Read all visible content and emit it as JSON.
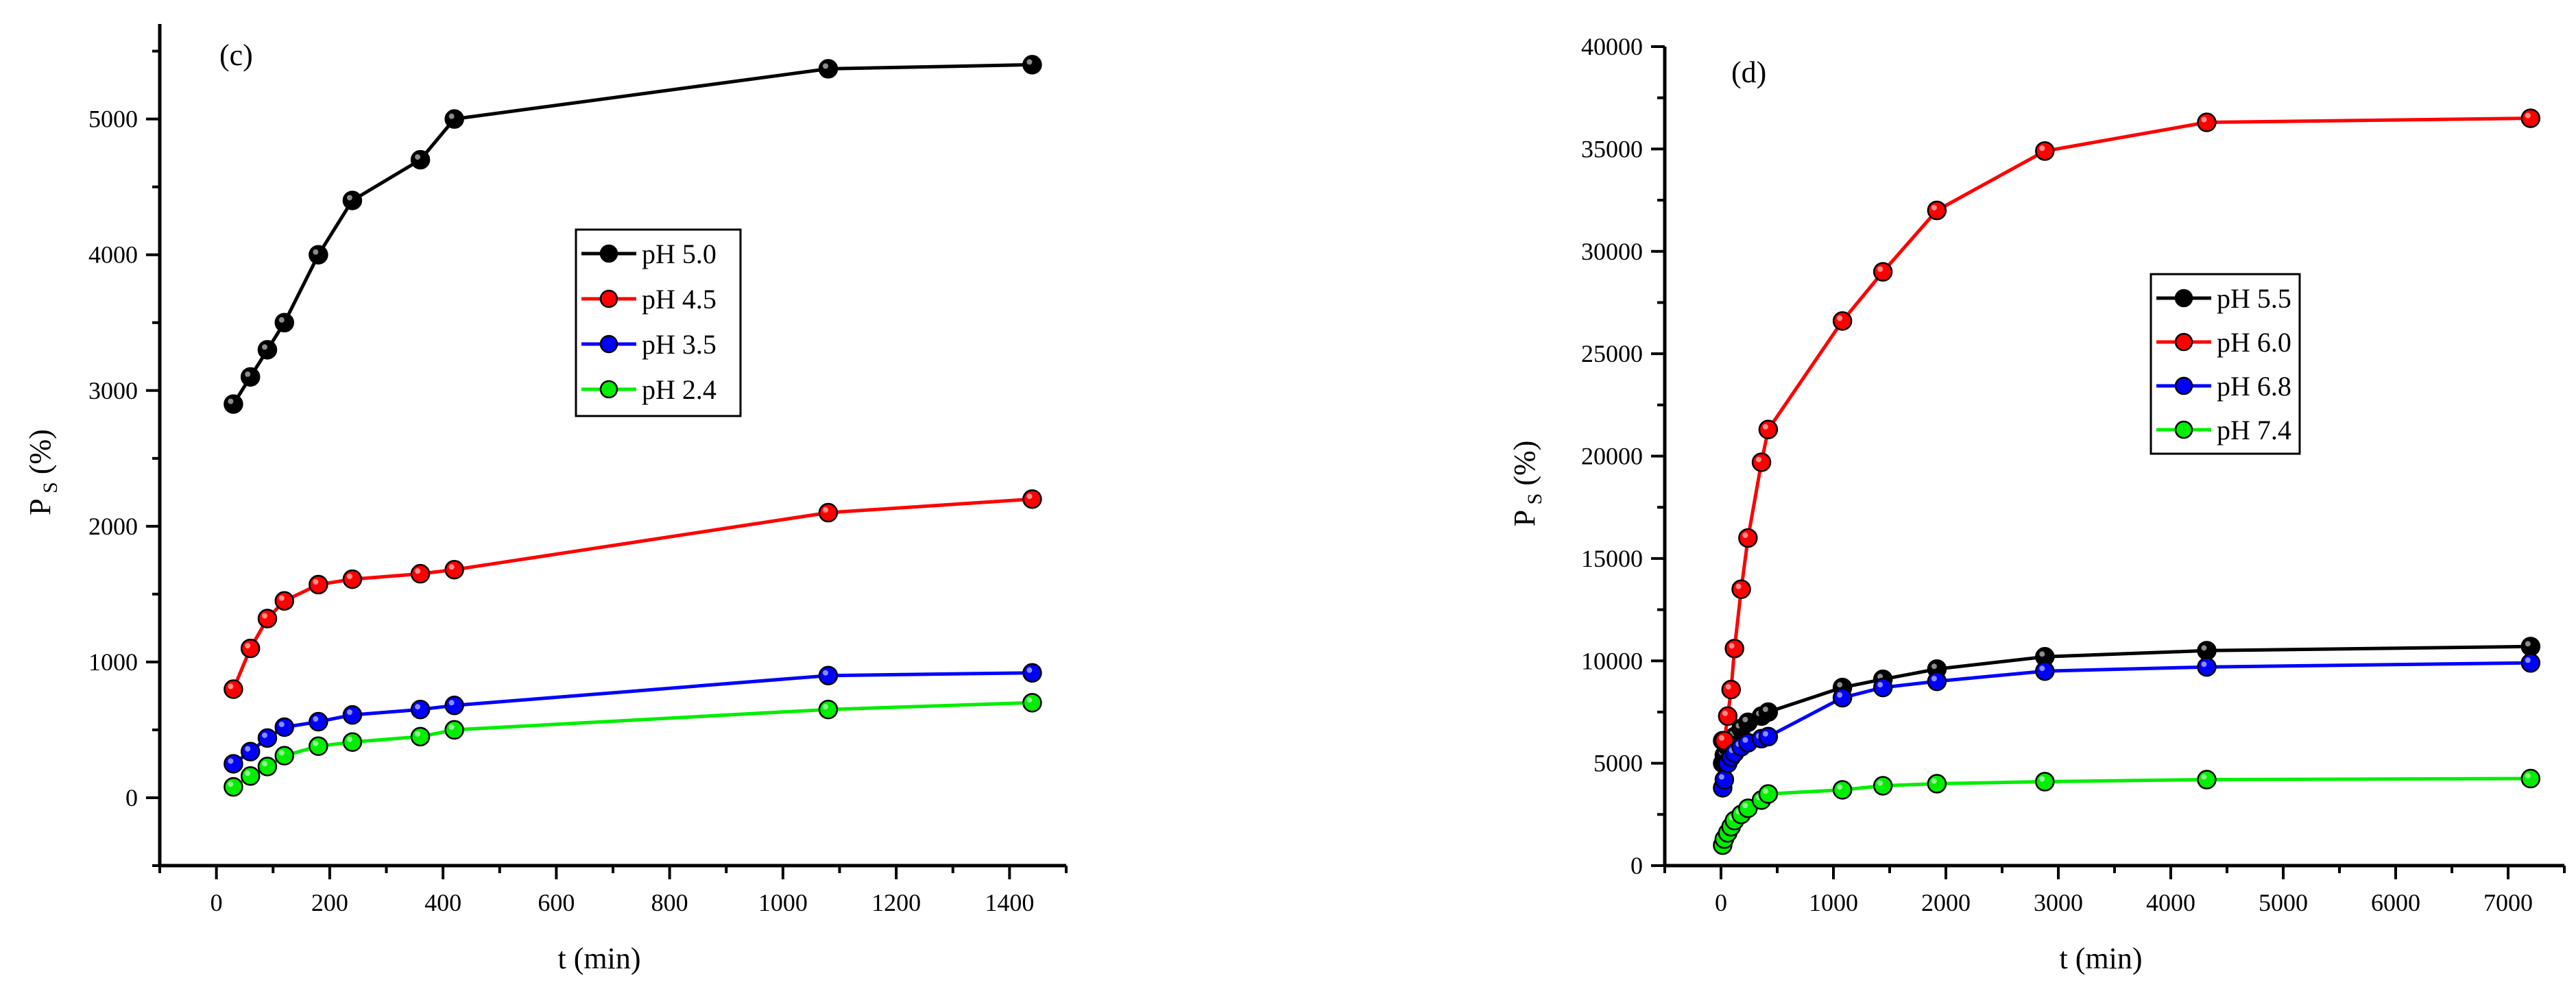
{
  "chart_data": [
    {
      "type": "line",
      "panel_label": "(c)",
      "xlabel": "t (min)",
      "ylabel_main": "P",
      "ylabel_sub": "S",
      "ylabel_tail": " (%)",
      "xlim": [
        -100,
        1500
      ],
      "ylim": [
        -500,
        5700
      ],
      "x_ticks": [
        0,
        200,
        400,
        600,
        800,
        1000,
        1200,
        1400
      ],
      "x_tick_labels": [
        "0",
        "200",
        "400",
        "600",
        "800",
        "1000",
        "1200",
        "1400"
      ],
      "y_ticks": [
        0,
        1000,
        2000,
        3000,
        4000,
        5000
      ],
      "y_tick_labels": [
        "0",
        "1000",
        "2000",
        "3000",
        "4000",
        "5000"
      ],
      "legend_position": "center",
      "series": [
        {
          "name": "pH 5.0",
          "color": "#000000",
          "x": [
            30,
            60,
            90,
            120,
            180,
            240,
            360,
            420,
            1080,
            1440
          ],
          "y": [
            2900,
            3100,
            3300,
            3500,
            4000,
            4400,
            4700,
            5000,
            5370,
            5400
          ]
        },
        {
          "name": "pH 4.5",
          "color": "#ff0000",
          "x": [
            30,
            60,
            90,
            120,
            180,
            240,
            360,
            420,
            1080,
            1440
          ],
          "y": [
            800,
            1100,
            1320,
            1450,
            1570,
            1610,
            1650,
            1680,
            2100,
            2200
          ]
        },
        {
          "name": "pH 3.5",
          "color": "#0000ff",
          "x": [
            30,
            60,
            90,
            120,
            180,
            240,
            360,
            420,
            1080,
            1440
          ],
          "y": [
            250,
            340,
            440,
            520,
            560,
            610,
            650,
            680,
            900,
            920
          ]
        },
        {
          "name": "pH 2.4",
          "color": "#00ee00",
          "x": [
            30,
            60,
            90,
            120,
            180,
            240,
            360,
            420,
            1080,
            1440
          ],
          "y": [
            80,
            160,
            230,
            310,
            380,
            410,
            450,
            500,
            650,
            700
          ]
        }
      ]
    },
    {
      "type": "line",
      "panel_label": "(d)",
      "xlabel": "t (min)",
      "ylabel_main": "P",
      "ylabel_sub": "S",
      "ylabel_tail": " (%)",
      "xlim": [
        -500,
        7500
      ],
      "ylim": [
        0,
        40000
      ],
      "x_ticks": [
        0,
        1000,
        2000,
        3000,
        4000,
        5000,
        6000,
        7000
      ],
      "x_tick_labels": [
        "0",
        "1000",
        "2000",
        "3000",
        "4000",
        "5000",
        "6000",
        "7000"
      ],
      "y_ticks": [
        0,
        5000,
        10000,
        15000,
        20000,
        25000,
        30000,
        35000,
        40000
      ],
      "y_tick_labels": [
        "0",
        "5000",
        "10000",
        "15000",
        "20000",
        "25000",
        "30000",
        "35000",
        "40000"
      ],
      "legend_position": "center-right",
      "series": [
        {
          "name": "pH 5.5",
          "color": "#000000",
          "x": [
            15,
            30,
            60,
            90,
            120,
            180,
            240,
            360,
            420,
            1080,
            1440,
            1920,
            2880,
            4320,
            7200
          ],
          "y": [
            5000,
            5400,
            5800,
            6000,
            6300,
            6700,
            7000,
            7300,
            7500,
            8700,
            9100,
            9600,
            10200,
            10500,
            10700
          ]
        },
        {
          "name": "pH 6.0",
          "color": "#ff0000",
          "x": [
            15,
            30,
            60,
            90,
            120,
            180,
            240,
            360,
            420,
            1080,
            1440,
            1920,
            2880,
            4320,
            7200
          ],
          "y": [
            6100,
            6100,
            7300,
            8600,
            10600,
            13500,
            16000,
            19700,
            21300,
            26600,
            29000,
            32000,
            34900,
            36300,
            36500
          ]
        },
        {
          "name": "pH 6.8",
          "color": "#0000ff",
          "x": [
            15,
            30,
            60,
            90,
            120,
            180,
            240,
            360,
            420,
            1080,
            1440,
            1920,
            2880,
            4320,
            7200
          ],
          "y": [
            3800,
            4200,
            5000,
            5300,
            5500,
            5800,
            6000,
            6200,
            6300,
            8200,
            8700,
            9000,
            9500,
            9700,
            9900
          ]
        },
        {
          "name": "pH 7.4",
          "color": "#00ee00",
          "x": [
            15,
            30,
            60,
            90,
            120,
            180,
            240,
            360,
            420,
            1080,
            1440,
            1920,
            2880,
            4320,
            7200
          ],
          "y": [
            1000,
            1300,
            1600,
            1900,
            2200,
            2500,
            2800,
            3200,
            3500,
            3700,
            3900,
            4000,
            4100,
            4200,
            4250
          ]
        }
      ]
    }
  ]
}
